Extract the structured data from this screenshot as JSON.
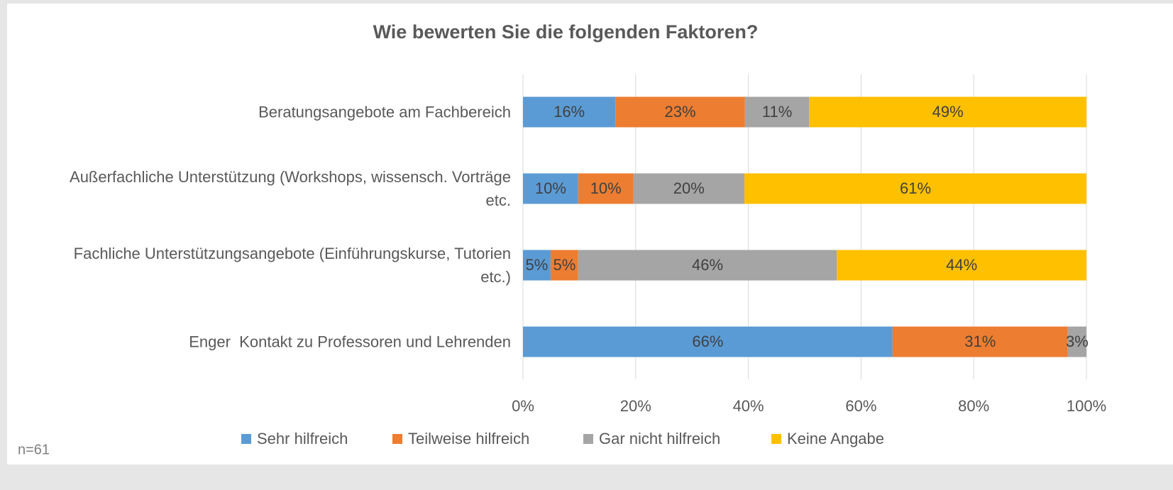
{
  "chart_data": {
    "type": "stacked_barh",
    "title": "Wie bewerten Sie die folgenden Faktoren?",
    "annotation": "n=61",
    "categories": [
      "Beratungsangebote am Fachbereich",
      "Außerfachliche Unterstützung (Workshops, wissensch. Vorträge etc.",
      "Fachliche Unterstützungsangebote (Einführungskurse, Tutorien etc.)",
      "Enger  Kontakt zu Professoren und Lehrenden"
    ],
    "series": [
      {
        "name": "Sehr hilfreich",
        "color": "#5b9bd5",
        "values": [
          16.4,
          9.8,
          4.9,
          65.6
        ],
        "value_labels": [
          "16%",
          "10%",
          "5%",
          "66%"
        ]
      },
      {
        "name": "Teilweise hilfreich",
        "color": "#ed7d31",
        "values": [
          23.0,
          9.8,
          4.9,
          31.1
        ],
        "value_labels": [
          "23%",
          "10%",
          "5%",
          "31%"
        ]
      },
      {
        "name": "Gar nicht hilfreich",
        "color": "#a5a5a5",
        "values": [
          11.4,
          19.7,
          45.9,
          3.3
        ],
        "value_labels": [
          "11%",
          "20%",
          "46%",
          "3%"
        ]
      },
      {
        "name": "Keine Angabe",
        "color": "#ffc000",
        "values": [
          49.2,
          60.7,
          44.3,
          0
        ],
        "value_labels": [
          "49%",
          "61%",
          "44%",
          null
        ]
      }
    ],
    "xlim": [
      0,
      100
    ],
    "xticks": [
      {
        "value": 0,
        "label": "0%"
      },
      {
        "value": 20,
        "label": "20%"
      },
      {
        "value": 40,
        "label": "40%"
      },
      {
        "value": 60,
        "label": "60%"
      },
      {
        "value": 80,
        "label": "80%"
      },
      {
        "value": 100,
        "label": "100%"
      }
    ],
    "grid": true,
    "legend": "bottom"
  }
}
